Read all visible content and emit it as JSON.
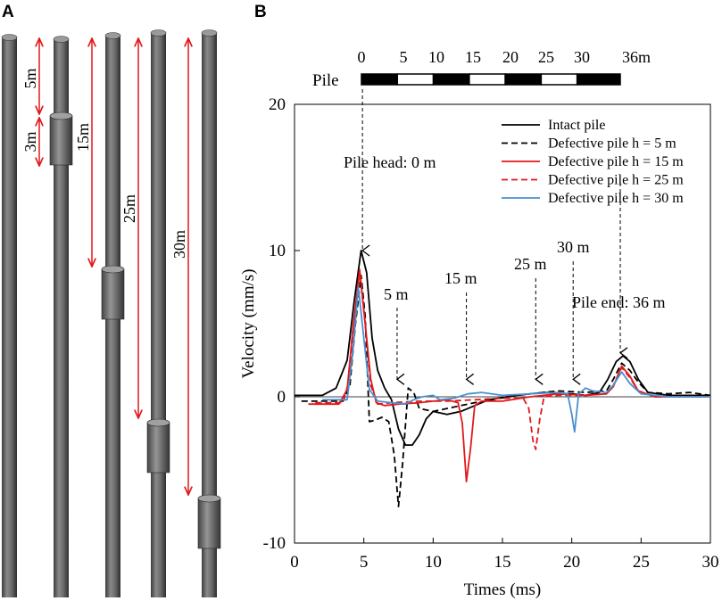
{
  "panel_a": {
    "label": "A",
    "dimensions": [
      {
        "text": "5m"
      },
      {
        "text": "3m"
      },
      {
        "text": "15m"
      },
      {
        "text": "25m"
      },
      {
        "text": "30m"
      }
    ],
    "colors": {
      "pile": "#5a5a5a",
      "arrow": "#e0191c"
    }
  },
  "panel_b": {
    "label": "B",
    "pile_bar": {
      "label": "Pile",
      "ticks": [
        "0",
        "5",
        "10",
        "15",
        "20",
        "25",
        "30",
        "36m"
      ],
      "tick_values": [
        0,
        5,
        10,
        15,
        20,
        25,
        30,
        36
      ]
    },
    "annotations": [
      {
        "text": "Pile head: 0 m",
        "x": 4.9,
        "y": 10
      },
      {
        "text": "5 m",
        "x": 7.4,
        "y": 1.2
      },
      {
        "text": "15 m",
        "x": 12.4,
        "y": 1.2
      },
      {
        "text": "25 m",
        "x": 17.4,
        "y": 1.2
      },
      {
        "text": "30 m",
        "x": 20.1,
        "y": 1.2
      },
      {
        "text": "Pile end: 36 m",
        "x": 23.5,
        "y": 3.0
      }
    ]
  },
  "chart_data": {
    "type": "line",
    "title": "",
    "xlabel": "Times (ms)",
    "ylabel": "Velocity (mm/s)",
    "xlim": [
      0,
      30
    ],
    "ylim": [
      -10,
      20
    ],
    "xticks": [
      0,
      5,
      10,
      15,
      20,
      25,
      30
    ],
    "yticks": [
      -10,
      0,
      10,
      20
    ],
    "legend_position": "top-right",
    "series": [
      {
        "name": "Intact pile",
        "color": "#000000",
        "dash": "solid",
        "points": [
          [
            0,
            0.1
          ],
          [
            2,
            0.1
          ],
          [
            3,
            0.6
          ],
          [
            3.8,
            2.5
          ],
          [
            4.3,
            6.5
          ],
          [
            4.8,
            10
          ],
          [
            5.2,
            8.5
          ],
          [
            5.6,
            4
          ],
          [
            6,
            1.8
          ],
          [
            6.5,
            0.6
          ],
          [
            7,
            -0.2
          ],
          [
            7.5,
            -2.2
          ],
          [
            8,
            -3.3
          ],
          [
            8.5,
            -3.3
          ],
          [
            9,
            -2.6
          ],
          [
            9.5,
            -1.5
          ],
          [
            10,
            -1.0
          ],
          [
            11,
            -1.2
          ],
          [
            12,
            -1.0
          ],
          [
            14,
            -0.2
          ],
          [
            16,
            0.1
          ],
          [
            18,
            0.3
          ],
          [
            20,
            0.2
          ],
          [
            21,
            0.1
          ],
          [
            22,
            0.3
          ],
          [
            22.6,
            1.2
          ],
          [
            23.2,
            2.4
          ],
          [
            23.7,
            2.8
          ],
          [
            24.2,
            2.4
          ],
          [
            24.8,
            1.2
          ],
          [
            25.5,
            0.3
          ],
          [
            27,
            0.1
          ],
          [
            30,
            0.1
          ]
        ]
      },
      {
        "name": "Defective pile h = 5 m",
        "color": "#000000",
        "dash": "7,4",
        "points": [
          [
            0.5,
            -0.3
          ],
          [
            2,
            -0.3
          ],
          [
            3.5,
            -0.3
          ],
          [
            4,
            0.8
          ],
          [
            4.4,
            5
          ],
          [
            4.8,
            8.3
          ],
          [
            5.1,
            5.5
          ],
          [
            5.4,
            -1.7
          ],
          [
            5.8,
            -1.6
          ],
          [
            6.3,
            -1.4
          ],
          [
            6.8,
            -1.7
          ],
          [
            7.2,
            -4
          ],
          [
            7.5,
            -7.5
          ],
          [
            7.8,
            -4.5
          ],
          [
            8.2,
            0.6
          ],
          [
            8.6,
            0.3
          ],
          [
            9,
            -0.8
          ],
          [
            10,
            -1.0
          ],
          [
            11,
            -0.8
          ],
          [
            13,
            -0.4
          ],
          [
            16,
            0.1
          ],
          [
            19,
            0.4
          ],
          [
            21,
            0.3
          ],
          [
            22.5,
            0.4
          ],
          [
            23,
            1.2
          ],
          [
            23.6,
            2.3
          ],
          [
            24.2,
            1.8
          ],
          [
            24.8,
            1.0
          ],
          [
            25.5,
            0.3
          ],
          [
            27,
            0.2
          ],
          [
            28.5,
            0.3
          ],
          [
            30,
            0.1
          ]
        ]
      },
      {
        "name": "Defective pile h = 15 m",
        "color": "#e0191c",
        "dash": "solid",
        "points": [
          [
            1,
            -0.5
          ],
          [
            3.2,
            -0.5
          ],
          [
            3.8,
            0.5
          ],
          [
            4.2,
            4.5
          ],
          [
            4.7,
            8.7
          ],
          [
            5.1,
            5
          ],
          [
            5.5,
            1.2
          ],
          [
            5.9,
            -0.4
          ],
          [
            6.5,
            -0.6
          ],
          [
            7.5,
            -0.5
          ],
          [
            9,
            -0.4
          ],
          [
            10,
            -0.3
          ],
          [
            11,
            -0.2
          ],
          [
            11.8,
            -0.4
          ],
          [
            12.1,
            -1.8
          ],
          [
            12.4,
            -5.8
          ],
          [
            12.7,
            -3.5
          ],
          [
            13,
            -0.6
          ],
          [
            13.5,
            -0.3
          ],
          [
            15,
            -0.3
          ],
          [
            17,
            0.0
          ],
          [
            19,
            0.2
          ],
          [
            21,
            0.1
          ],
          [
            22.5,
            0.2
          ],
          [
            23,
            0.7
          ],
          [
            23.6,
            2.1
          ],
          [
            24.2,
            1.4
          ],
          [
            24.8,
            0.4
          ],
          [
            26,
            0.0
          ],
          [
            30,
            0.0
          ]
        ]
      },
      {
        "name": "Defective pile h = 25 m",
        "color": "#e0191c",
        "dash": "7,4",
        "points": [
          [
            1.5,
            -0.4
          ],
          [
            3.5,
            -0.4
          ],
          [
            3.9,
            1
          ],
          [
            4.3,
            5
          ],
          [
            4.7,
            8.6
          ],
          [
            5.1,
            5
          ],
          [
            5.5,
            0.8
          ],
          [
            6,
            -0.5
          ],
          [
            7,
            -0.4
          ],
          [
            9,
            -0.3
          ],
          [
            11,
            -0.3
          ],
          [
            13,
            -0.2
          ],
          [
            15,
            -0.1
          ],
          [
            16.5,
            -0.1
          ],
          [
            16.9,
            -0.8
          ],
          [
            17.2,
            -3.0
          ],
          [
            17.4,
            -3.6
          ],
          [
            17.7,
            -1.5
          ],
          [
            18,
            0.0
          ],
          [
            19,
            0.1
          ],
          [
            21,
            0.1
          ],
          [
            22.5,
            0.2
          ],
          [
            23,
            0.8
          ],
          [
            23.6,
            2.0
          ],
          [
            24.2,
            1.3
          ],
          [
            24.8,
            0.4
          ],
          [
            26,
            0.0
          ],
          [
            30,
            0.0
          ]
        ]
      },
      {
        "name": "Defective pile h = 30 m",
        "color": "#4a90d0",
        "dash": "solid",
        "points": [
          [
            2,
            -0.2
          ],
          [
            3.8,
            -0.2
          ],
          [
            4.2,
            3
          ],
          [
            4.6,
            7.5
          ],
          [
            5.0,
            4
          ],
          [
            5.4,
            0.5
          ],
          [
            6,
            -0.3
          ],
          [
            7,
            -0.4
          ],
          [
            8,
            -0.5
          ],
          [
            8.6,
            -0.2
          ],
          [
            9.2,
            0.0
          ],
          [
            10,
            0.1
          ],
          [
            10.5,
            -0.2
          ],
          [
            11.5,
            -0.1
          ],
          [
            12.5,
            0.2
          ],
          [
            13.5,
            0.3
          ],
          [
            15,
            0.1
          ],
          [
            17,
            0.2
          ],
          [
            19,
            0.3
          ],
          [
            19.7,
            0.2
          ],
          [
            20,
            -1.2
          ],
          [
            20.2,
            -2.4
          ],
          [
            20.5,
            0.2
          ],
          [
            21,
            0.6
          ],
          [
            21.5,
            0.4
          ],
          [
            22.5,
            0.3
          ],
          [
            23,
            0.8
          ],
          [
            23.6,
            1.7
          ],
          [
            24.2,
            0.9
          ],
          [
            25,
            0.2
          ],
          [
            27,
            0.0
          ],
          [
            30,
            0.0
          ]
        ]
      }
    ]
  }
}
